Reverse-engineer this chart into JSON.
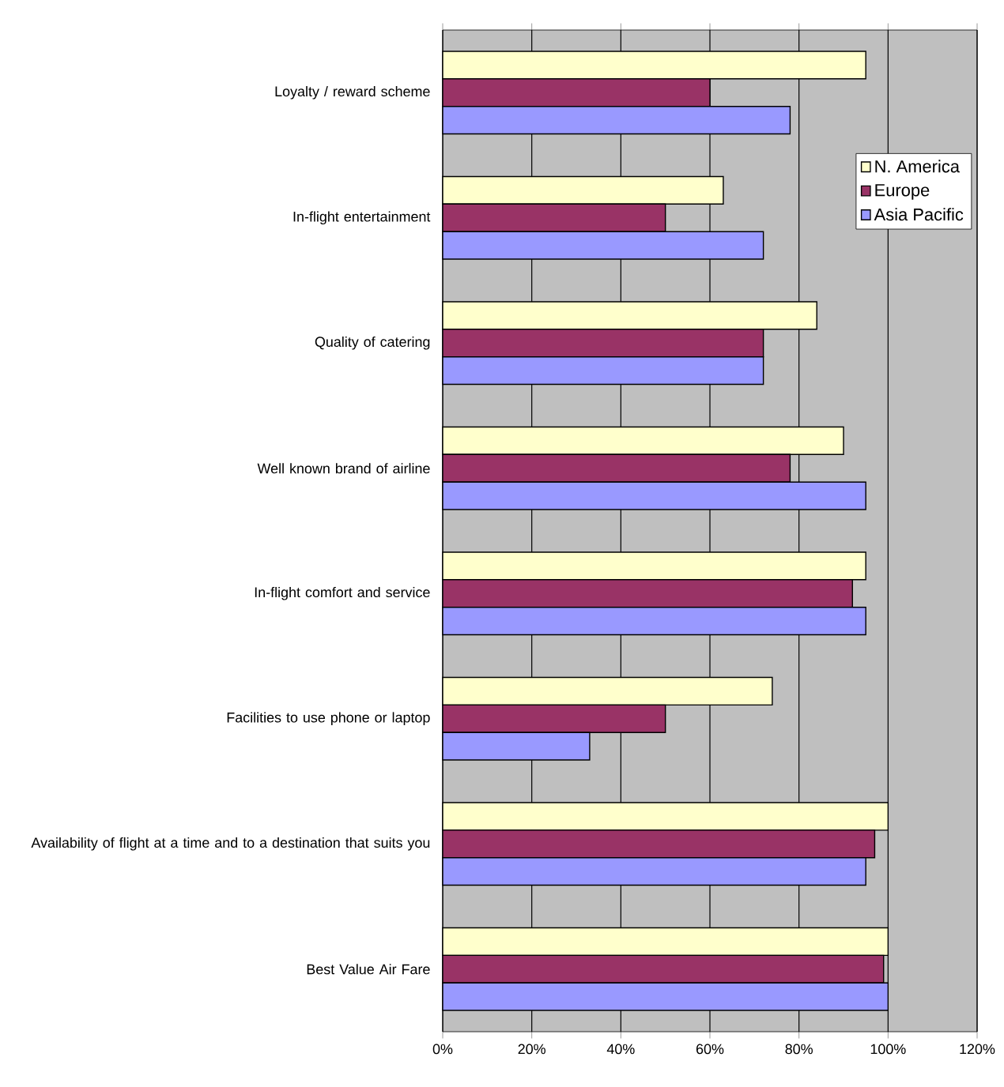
{
  "chart_data": {
    "type": "bar",
    "orientation": "horizontal",
    "categories": [
      "Loyalty / reward scheme",
      "In-flight entertainment",
      "Quality of catering",
      "Well known brand of airline",
      "In-flight comfort and service",
      "Facilities to use phone or laptop",
      "Availability of flight at a time and to a destination that suits you",
      "Best Value Air Fare"
    ],
    "series": [
      {
        "name": "N. America",
        "color": "#ffffcc",
        "values": [
          95,
          63,
          84,
          90,
          95,
          74,
          100,
          100
        ]
      },
      {
        "name": "Europe",
        "color": "#993366",
        "values": [
          60,
          50,
          72,
          78,
          92,
          50,
          97,
          99
        ]
      },
      {
        "name": "Asia Pacific",
        "color": "#9999ff",
        "values": [
          78,
          72,
          72,
          95,
          95,
          33,
          95,
          100
        ]
      }
    ],
    "xlim": [
      0,
      120
    ],
    "xticks": [
      {
        "value": 0,
        "label": "0%"
      },
      {
        "value": 20,
        "label": "20%"
      },
      {
        "value": 40,
        "label": "40%"
      },
      {
        "value": 60,
        "label": "60%"
      },
      {
        "value": 80,
        "label": "80%"
      },
      {
        "value": 100,
        "label": "100%"
      },
      {
        "value": 120,
        "label": "120%"
      }
    ],
    "grid": "x",
    "legend": "top right"
  }
}
